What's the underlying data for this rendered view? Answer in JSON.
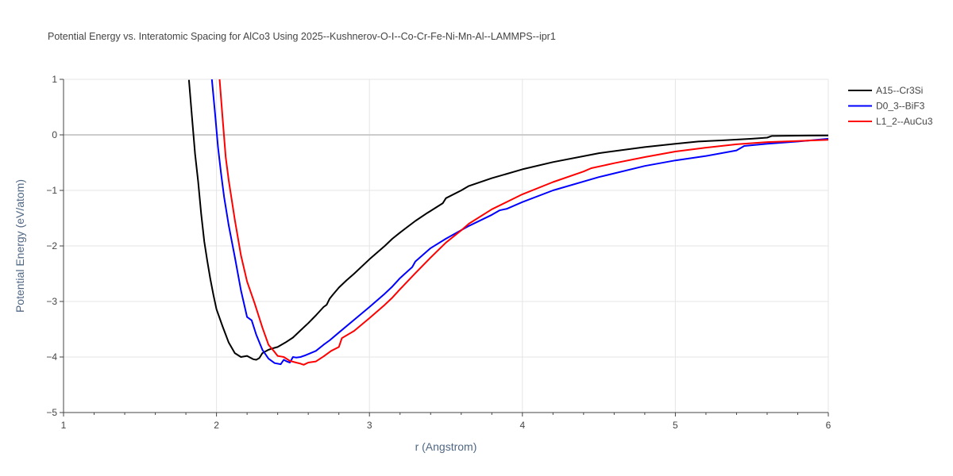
{
  "chart_data": {
    "type": "line",
    "title": "Potential Energy vs. Interatomic Spacing for AlCo3 Using 2025--Kushnerov-O-I--Co-Cr-Fe-Ni-Mn-Al--LAMMPS--ipr1",
    "xlabel": "r (Angstrom)",
    "ylabel": "Potential Energy (eV/atom)",
    "xlim": [
      1,
      6
    ],
    "ylim": [
      -5,
      1
    ],
    "x_ticks": [
      1,
      2,
      3,
      4,
      5,
      6
    ],
    "x_tick_labels": [
      "1",
      "2",
      "3",
      "4",
      "5",
      "6"
    ],
    "y_ticks": [
      -5,
      -4,
      -3,
      -2,
      -1,
      0,
      1
    ],
    "y_tick_labels": [
      "−5",
      "−4",
      "−3",
      "−2",
      "−1",
      "0",
      "1"
    ],
    "grid": true,
    "legend_position": "top-right",
    "series": [
      {
        "name": "A15--Cr3Si",
        "color": "#000000",
        "x": [
          1.82,
          1.84,
          1.86,
          1.88,
          1.9,
          1.92,
          1.94,
          1.96,
          1.98,
          2.0,
          2.04,
          2.08,
          2.12,
          2.16,
          2.2,
          2.22,
          2.24,
          2.26,
          2.28,
          2.3,
          2.32,
          2.34,
          2.36,
          2.4,
          2.45,
          2.5,
          2.55,
          2.6,
          2.65,
          2.7,
          2.72,
          2.74,
          2.76,
          2.8,
          2.85,
          2.9,
          3.0,
          3.1,
          3.15,
          3.2,
          3.3,
          3.37,
          3.4,
          3.48,
          3.5,
          3.6,
          3.65,
          3.8,
          4.0,
          4.2,
          4.5,
          4.8,
          5.0,
          5.15,
          5.3,
          5.5,
          5.6,
          5.63,
          5.8,
          6.0
        ],
        "y": [
          0.99,
          0.31,
          -0.34,
          -0.84,
          -1.42,
          -1.92,
          -2.27,
          -2.6,
          -2.88,
          -3.14,
          -3.45,
          -3.74,
          -3.93,
          -4.0,
          -3.98,
          -4.01,
          -4.04,
          -4.05,
          -4.02,
          -3.93,
          -3.9,
          -3.87,
          -3.85,
          -3.82,
          -3.74,
          -3.65,
          -3.52,
          -3.39,
          -3.25,
          -3.1,
          -3.06,
          -2.95,
          -2.88,
          -2.75,
          -2.62,
          -2.5,
          -2.24,
          -2.0,
          -1.87,
          -1.76,
          -1.55,
          -1.42,
          -1.37,
          -1.23,
          -1.14,
          -1.0,
          -0.92,
          -0.78,
          -0.62,
          -0.49,
          -0.33,
          -0.22,
          -0.16,
          -0.12,
          -0.1,
          -0.07,
          -0.05,
          -0.02,
          -0.015,
          -0.01
        ]
      },
      {
        "name": "D0_3--BiF3",
        "color": "#0000ff",
        "x": [
          1.97,
          1.99,
          2.01,
          2.03,
          2.05,
          2.08,
          2.12,
          2.16,
          2.2,
          2.23,
          2.26,
          2.3,
          2.34,
          2.38,
          2.42,
          2.44,
          2.46,
          2.48,
          2.5,
          2.52,
          2.55,
          2.58,
          2.65,
          2.7,
          2.74,
          2.8,
          2.9,
          3.0,
          3.1,
          3.15,
          3.2,
          3.28,
          3.3,
          3.4,
          3.5,
          3.65,
          3.8,
          3.85,
          3.9,
          4.0,
          4.2,
          4.5,
          4.8,
          5.0,
          5.2,
          5.4,
          5.45,
          5.6,
          5.8,
          6.0
        ],
        "y": [
          1.0,
          0.4,
          -0.22,
          -0.7,
          -1.12,
          -1.63,
          -2.2,
          -2.8,
          -3.28,
          -3.34,
          -3.6,
          -3.87,
          -4.03,
          -4.11,
          -4.13,
          -4.05,
          -4.08,
          -4.1,
          -4.0,
          -4.01,
          -4.0,
          -3.97,
          -3.89,
          -3.78,
          -3.7,
          -3.56,
          -3.33,
          -3.1,
          -2.86,
          -2.73,
          -2.58,
          -2.38,
          -2.28,
          -2.04,
          -1.87,
          -1.64,
          -1.44,
          -1.36,
          -1.33,
          -1.21,
          -1.0,
          -0.76,
          -0.56,
          -0.46,
          -0.38,
          -0.28,
          -0.2,
          -0.16,
          -0.12,
          -0.07
        ]
      },
      {
        "name": "L1_2--AuCu3",
        "color": "#ff0000",
        "x": [
          2.02,
          2.04,
          2.06,
          2.08,
          2.12,
          2.16,
          2.2,
          2.25,
          2.3,
          2.34,
          2.38,
          2.4,
          2.42,
          2.44,
          2.48,
          2.52,
          2.55,
          2.57,
          2.6,
          2.65,
          2.7,
          2.75,
          2.8,
          2.82,
          2.9,
          3.0,
          3.1,
          3.15,
          3.2,
          3.3,
          3.4,
          3.5,
          3.6,
          3.65,
          3.8,
          4.0,
          4.2,
          4.4,
          4.45,
          4.6,
          4.8,
          5.0,
          5.2,
          5.4,
          5.6,
          5.8,
          6.0
        ],
        "y": [
          1.0,
          0.3,
          -0.4,
          -0.82,
          -1.53,
          -2.17,
          -2.64,
          -3.04,
          -3.47,
          -3.78,
          -3.91,
          -3.98,
          -3.99,
          -4.0,
          -4.07,
          -4.1,
          -4.12,
          -4.14,
          -4.1,
          -4.08,
          -3.99,
          -3.89,
          -3.82,
          -3.66,
          -3.53,
          -3.3,
          -3.06,
          -2.93,
          -2.78,
          -2.49,
          -2.21,
          -1.94,
          -1.72,
          -1.6,
          -1.34,
          -1.07,
          -0.85,
          -0.66,
          -0.6,
          -0.51,
          -0.4,
          -0.3,
          -0.23,
          -0.17,
          -0.13,
          -0.11,
          -0.09
        ]
      }
    ]
  }
}
